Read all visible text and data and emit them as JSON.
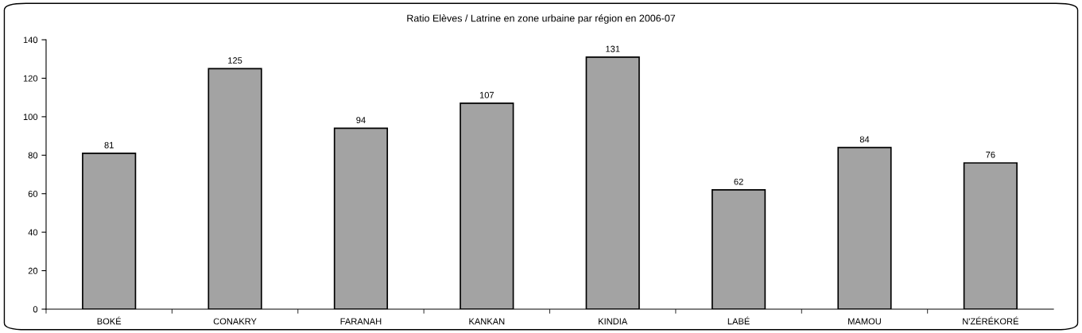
{
  "chart_data": {
    "type": "bar",
    "title": "Ratio Elèves / Latrine en zone urbaine par région en 2006-07",
    "categories": [
      "BOKÉ",
      "CONAKRY",
      "FARANAH",
      "KANKAN",
      "KINDIA",
      "LABÉ",
      "MAMOU",
      "N'ZÉRÉKORÉ"
    ],
    "values": [
      81,
      125,
      94,
      107,
      131,
      62,
      84,
      76
    ],
    "color": "#a3a3a3",
    "ylim": [
      0,
      140
    ],
    "yticks": [
      0,
      20,
      40,
      60,
      80,
      100,
      120,
      140
    ],
    "data_labels": true,
    "grid": false,
    "legend": false
  }
}
